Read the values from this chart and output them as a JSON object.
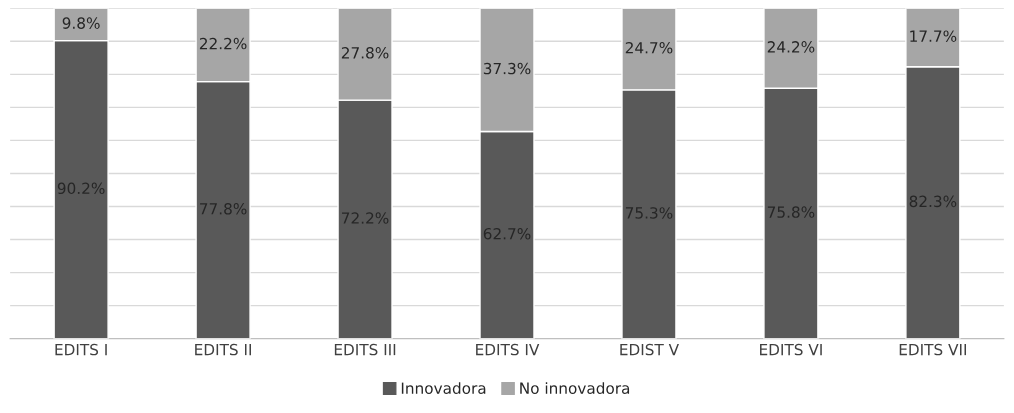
{
  "chart_data": {
    "type": "bar",
    "stacked": true,
    "categories": [
      "EDITS I",
      "EDITS II",
      "EDITS III",
      "EDITS IV",
      "EDIST V",
      "EDITS VI",
      "EDITS VII"
    ],
    "series": [
      {
        "name": "Innovadora",
        "color": "#595959",
        "values": [
          90.2,
          77.8,
          72.2,
          62.7,
          75.3,
          75.8,
          82.3
        ],
        "value_labels": [
          "90.2%",
          "77.8%",
          "72.2%",
          "62.7%",
          "75.3%",
          "75.8%",
          "82.3%"
        ]
      },
      {
        "name": "No innovadora",
        "color": "#a6a6a6",
        "values": [
          9.8,
          22.2,
          27.8,
          37.3,
          24.7,
          24.2,
          17.7
        ],
        "value_labels": [
          "9.8%",
          "22.2%",
          "27.8%",
          "37.3%",
          "24.7%",
          "24.2%",
          "17.7%"
        ]
      }
    ],
    "ylim": [
      0,
      100
    ],
    "yticks": [
      {
        "value": 0,
        "label": null
      },
      {
        "value": 10,
        "label": null
      },
      {
        "value": 20,
        "label": null
      },
      {
        "value": 30,
        "label": null
      },
      {
        "value": 40,
        "label": null
      },
      {
        "value": 50,
        "label": null
      },
      {
        "value": 60,
        "label": null
      },
      {
        "value": 70,
        "label": null
      },
      {
        "value": 80,
        "label": null
      },
      {
        "value": 90,
        "label": null
      },
      {
        "value": 100,
        "label": null
      }
    ],
    "tick_labels": "x",
    "grid": "y",
    "legend": "bottom"
  }
}
